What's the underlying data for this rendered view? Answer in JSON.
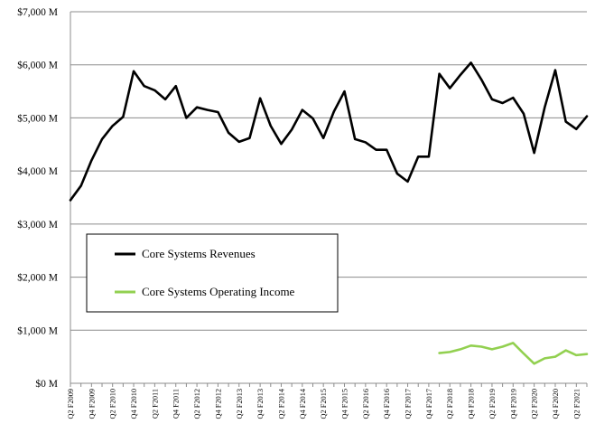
{
  "chart_data": {
    "type": "line",
    "title": "",
    "xlabel": "",
    "ylabel": "",
    "ylim": [
      0,
      7000
    ],
    "grid": true,
    "legend_position": "center-left",
    "yticks": [
      0,
      1000,
      2000,
      3000,
      4000,
      5000,
      6000,
      7000
    ],
    "ytick_labels": [
      "$0 M",
      "$1,000 M",
      "$2,000 M",
      "$3,000 M",
      "$4,000 M",
      "$5,000 M",
      "$6,000 M",
      "$7,000 M"
    ],
    "categories": [
      "Q2 F2009",
      "Q3 F2009",
      "Q4 F2009",
      "Q1 F2010",
      "Q2 F2010",
      "Q3 F2010",
      "Q4 F2010",
      "Q1 F2011",
      "Q2 F2011",
      "Q3 F2011",
      "Q4 F2011",
      "Q1 F2012",
      "Q2 F2012",
      "Q3 F2012",
      "Q4 F2012",
      "Q1 F2013",
      "Q2 F2013",
      "Q3 F2013",
      "Q4 F2013",
      "Q1 F2014",
      "Q2 F2014",
      "Q3 F2014",
      "Q4 F2014",
      "Q1 F2015",
      "Q2 F2015",
      "Q3 F2015",
      "Q4 F2015",
      "Q1 F2016",
      "Q2 F2016",
      "Q3 F2016",
      "Q4 F2016",
      "Q1 F2017",
      "Q2 F2017",
      "Q3 F2017",
      "Q4 F2017",
      "Q1 F2018",
      "Q2 F2018",
      "Q3 F2018",
      "Q4 F2018",
      "Q1 F2019",
      "Q2 F2019",
      "Q3 F2019",
      "Q4 F2019",
      "Q1 F2020",
      "Q2 F2020",
      "Q3 F2020",
      "Q4 F2020",
      "Q1 F2021",
      "Q2 F2021",
      "Q3 F2021"
    ],
    "shown_category_labels": [
      "Q2 F2009",
      "Q4 F2009",
      "Q2 F2010",
      "Q4 F2010",
      "Q2 F2011",
      "Q4 F2011",
      "Q2 F2012",
      "Q4 F2012",
      "Q2 F2013",
      "Q4 F2013",
      "Q2 F2014",
      "Q4 F2014",
      "Q2 F2015",
      "Q4 F2015",
      "Q2 F2016",
      "Q4 F2016",
      "Q2 F2017",
      "Q4 F2017",
      "Q2 F2018",
      "Q4 F2018",
      "Q2 F2019",
      "Q4 F2019",
      "Q2 F2020",
      "Q4 F2020",
      "Q2 F2021"
    ],
    "series": [
      {
        "name": "Core Systems Revenues",
        "color": "#000000",
        "values": [
          3450,
          3720,
          4200,
          4600,
          4850,
          5020,
          5880,
          5600,
          5520,
          5350,
          5600,
          5000,
          5200,
          5150,
          5110,
          4720,
          4550,
          4620,
          5370,
          4850,
          4510,
          4780,
          5150,
          4990,
          4620,
          5120,
          5500,
          4600,
          4540,
          4400,
          4400,
          3950,
          3800,
          4270,
          4270,
          5830,
          5560,
          5810,
          6040,
          5720,
          5350,
          5280,
          5380,
          5080,
          4340,
          5200,
          5900,
          4930,
          4790,
          5030
        ]
      },
      {
        "name": "Core Systems Operating Income",
        "color": "#92d050",
        "values": [
          null,
          null,
          null,
          null,
          null,
          null,
          null,
          null,
          null,
          null,
          null,
          null,
          null,
          null,
          null,
          null,
          null,
          null,
          null,
          null,
          null,
          null,
          null,
          null,
          null,
          null,
          null,
          null,
          null,
          null,
          null,
          null,
          null,
          null,
          null,
          570,
          590,
          640,
          710,
          690,
          640,
          690,
          760,
          560,
          370,
          470,
          500,
          620,
          530,
          550
        ]
      }
    ]
  }
}
